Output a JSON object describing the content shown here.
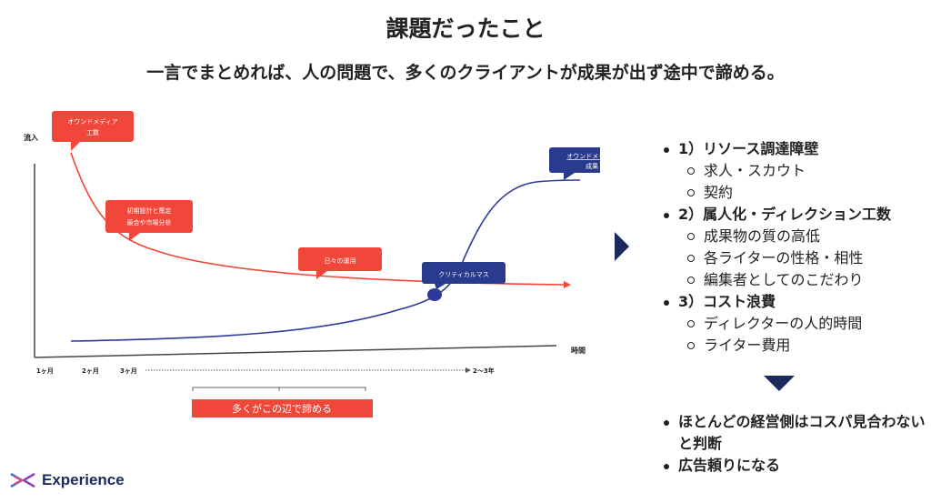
{
  "title": "課題だったこと",
  "subtitle": "一言でまとめれば、人の問題で、多くのクライアントが成果が出ず途中で諦める。",
  "chart": {
    "y_label": "流入",
    "x_label": "時間",
    "x_ticks": [
      "1ヶ月",
      "2ヶ月",
      "3ヶ月",
      "2〜3年"
    ],
    "callouts": {
      "owned_cost_line1": "オウンドメディア",
      "owned_cost_line2": "工数",
      "initial_line1": "初期設計と策定",
      "initial_line2": "競合や市場分析",
      "daily": "日々の運用",
      "critical": "クリティカルマス",
      "owned_result_line1": "オウンドメディア",
      "owned_result_line2": "成果"
    },
    "giveup_label": "多くがこの辺で諦める",
    "colors": {
      "cost": "#f0473a",
      "result": "#2d3a9a",
      "callout_red": "#f0473a",
      "callout_navy": "#2a3a8c"
    }
  },
  "right_panel": {
    "items": [
      {
        "label": "1）リソース調達障壁",
        "sub": [
          "求人・スカウト",
          "契約"
        ]
      },
      {
        "label": "2）属人化・ディレクション工数",
        "sub": [
          "成果物の質の高低",
          "各ライターの性格・相性",
          "編集者としてのこだわり"
        ]
      },
      {
        "label": "3）コスト浪費",
        "sub": [
          "ディレクターの人的時間",
          "ライター費用"
        ]
      }
    ],
    "conclusions": [
      "ほとんどの経営側はコスパ見合わないと判断",
      "広告頼りになる"
    ]
  },
  "logo": {
    "text": "Experience",
    "icon": "experience-logo-icon"
  }
}
